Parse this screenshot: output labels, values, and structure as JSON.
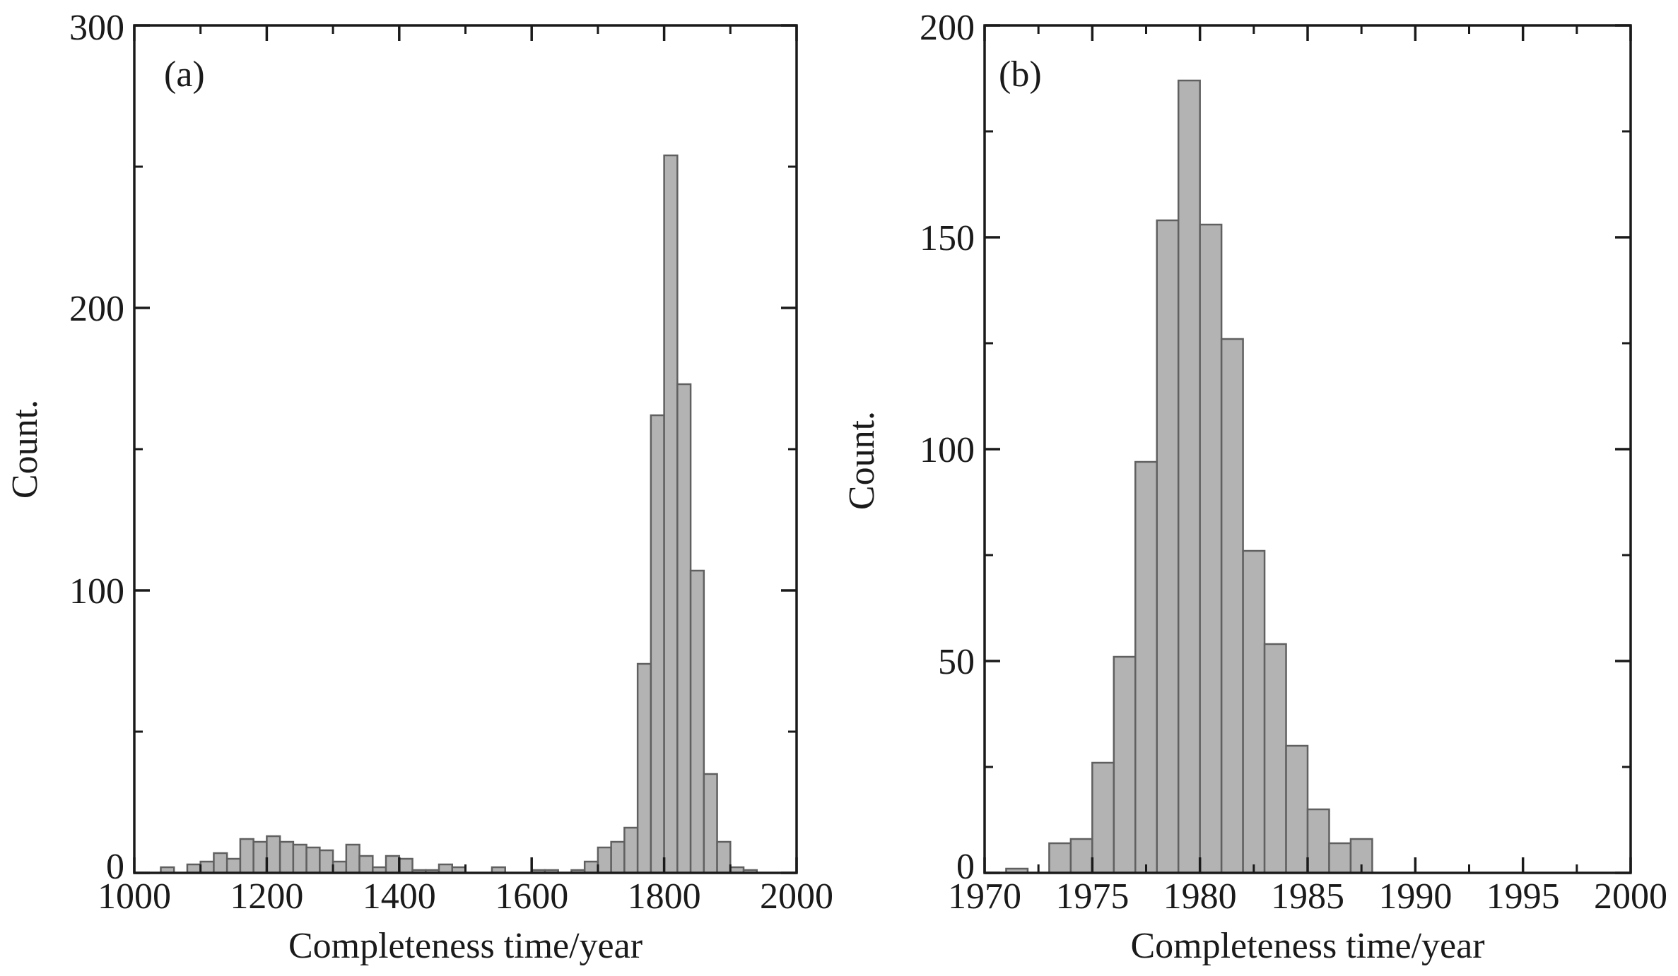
{
  "chart_data": [
    {
      "type": "bar",
      "panel_label": "(a)",
      "xlabel": "Completeness time/year",
      "ylabel": "Count.",
      "xlim": [
        1000,
        2000
      ],
      "ylim": [
        0,
        300
      ],
      "xticks": [
        "1000",
        "1200",
        "1400",
        "1600",
        "1800",
        "2000"
      ],
      "yticks": [
        "0",
        "100",
        "200",
        "300"
      ],
      "bar_color": "#b3b3b3",
      "edge_color": "#606060",
      "bins": [
        {
          "x0": 1040,
          "x1": 1060,
          "count": 2
        },
        {
          "x0": 1080,
          "x1": 1100,
          "count": 3
        },
        {
          "x0": 1100,
          "x1": 1120,
          "count": 4
        },
        {
          "x0": 1120,
          "x1": 1140,
          "count": 7
        },
        {
          "x0": 1140,
          "x1": 1160,
          "count": 5
        },
        {
          "x0": 1160,
          "x1": 1180,
          "count": 12
        },
        {
          "x0": 1180,
          "x1": 1200,
          "count": 11
        },
        {
          "x0": 1200,
          "x1": 1220,
          "count": 13
        },
        {
          "x0": 1220,
          "x1": 1240,
          "count": 11
        },
        {
          "x0": 1240,
          "x1": 1260,
          "count": 10
        },
        {
          "x0": 1260,
          "x1": 1280,
          "count": 9
        },
        {
          "x0": 1280,
          "x1": 1300,
          "count": 8
        },
        {
          "x0": 1300,
          "x1": 1320,
          "count": 4
        },
        {
          "x0": 1320,
          "x1": 1340,
          "count": 10
        },
        {
          "x0": 1340,
          "x1": 1360,
          "count": 6
        },
        {
          "x0": 1360,
          "x1": 1380,
          "count": 2
        },
        {
          "x0": 1380,
          "x1": 1400,
          "count": 6
        },
        {
          "x0": 1400,
          "x1": 1420,
          "count": 5
        },
        {
          "x0": 1420,
          "x1": 1440,
          "count": 1
        },
        {
          "x0": 1440,
          "x1": 1460,
          "count": 1
        },
        {
          "x0": 1460,
          "x1": 1480,
          "count": 3
        },
        {
          "x0": 1480,
          "x1": 1500,
          "count": 2
        },
        {
          "x0": 1540,
          "x1": 1560,
          "count": 2
        },
        {
          "x0": 1600,
          "x1": 1620,
          "count": 1
        },
        {
          "x0": 1620,
          "x1": 1640,
          "count": 1
        },
        {
          "x0": 1660,
          "x1": 1680,
          "count": 1
        },
        {
          "x0": 1680,
          "x1": 1700,
          "count": 4
        },
        {
          "x0": 1700,
          "x1": 1720,
          "count": 9
        },
        {
          "x0": 1720,
          "x1": 1740,
          "count": 11
        },
        {
          "x0": 1740,
          "x1": 1760,
          "count": 16
        },
        {
          "x0": 1760,
          "x1": 1780,
          "count": 74
        },
        {
          "x0": 1780,
          "x1": 1800,
          "count": 162
        },
        {
          "x0": 1800,
          "x1": 1820,
          "count": 254
        },
        {
          "x0": 1820,
          "x1": 1840,
          "count": 173
        },
        {
          "x0": 1840,
          "x1": 1860,
          "count": 107
        },
        {
          "x0": 1860,
          "x1": 1880,
          "count": 35
        },
        {
          "x0": 1880,
          "x1": 1900,
          "count": 11
        },
        {
          "x0": 1900,
          "x1": 1920,
          "count": 2
        },
        {
          "x0": 1920,
          "x1": 1940,
          "count": 1
        }
      ]
    },
    {
      "type": "bar",
      "panel_label": "(b)",
      "xlabel": "Completeness time/year",
      "ylabel": "Count.",
      "xlim": [
        1970,
        2000
      ],
      "ylim": [
        0,
        200
      ],
      "xticks": [
        "1970",
        "1975",
        "1980",
        "1985",
        "1990",
        "1995",
        "2000"
      ],
      "yticks": [
        "0",
        "50",
        "100",
        "150",
        "200"
      ],
      "bar_color": "#b3b3b3",
      "edge_color": "#606060",
      "bins": [
        {
          "x0": 1971,
          "x1": 1972,
          "count": 1
        },
        {
          "x0": 1973,
          "x1": 1974,
          "count": 7
        },
        {
          "x0": 1974,
          "x1": 1975,
          "count": 8
        },
        {
          "x0": 1975,
          "x1": 1976,
          "count": 26
        },
        {
          "x0": 1976,
          "x1": 1977,
          "count": 51
        },
        {
          "x0": 1977,
          "x1": 1978,
          "count": 97
        },
        {
          "x0": 1978,
          "x1": 1979,
          "count": 154
        },
        {
          "x0": 1979,
          "x1": 1980,
          "count": 187
        },
        {
          "x0": 1980,
          "x1": 1981,
          "count": 153
        },
        {
          "x0": 1981,
          "x1": 1982,
          "count": 126
        },
        {
          "x0": 1982,
          "x1": 1983,
          "count": 76
        },
        {
          "x0": 1983,
          "x1": 1984,
          "count": 54
        },
        {
          "x0": 1984,
          "x1": 1985,
          "count": 30
        },
        {
          "x0": 1985,
          "x1": 1986,
          "count": 15
        },
        {
          "x0": 1986,
          "x1": 1987,
          "count": 7
        },
        {
          "x0": 1987,
          "x1": 1988,
          "count": 8
        }
      ]
    }
  ]
}
